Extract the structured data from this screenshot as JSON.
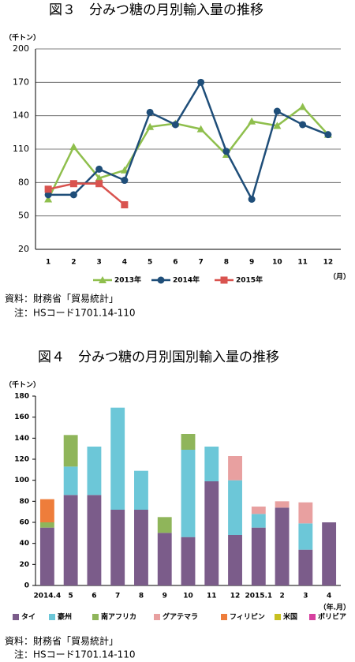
{
  "chart_data": [
    {
      "type": "line",
      "title": "図３　分みつ糖の月別輸入量の推移",
      "y_unit": "（千トン）",
      "x_unit": "（月）",
      "categories": [
        "1",
        "2",
        "3",
        "4",
        "5",
        "6",
        "7",
        "8",
        "9",
        "10",
        "11",
        "12"
      ],
      "ylim": [
        20,
        200
      ],
      "yticks": [
        20,
        50,
        80,
        110,
        140,
        170,
        200
      ],
      "grid": true,
      "series": [
        {
          "name": "2013年",
          "color": "#8fbf4d",
          "marker": "triangle",
          "values": [
            65,
            112,
            84,
            91,
            130,
            133,
            128,
            105,
            135,
            131,
            148,
            123
          ]
        },
        {
          "name": "2014年",
          "color": "#1f4e79",
          "marker": "circle",
          "values": [
            69,
            69,
            92,
            82,
            143,
            132,
            170,
            108,
            65,
            144,
            132,
            123
          ]
        },
        {
          "name": "2015年",
          "color": "#d9534f",
          "marker": "square",
          "values": [
            74,
            79,
            79,
            60,
            null,
            null,
            null,
            null,
            null,
            null,
            null,
            null
          ]
        }
      ],
      "source": "資料：財務省「貿易統計」",
      "note": "注：HSコード1701.14-110"
    },
    {
      "type": "stacked-bar",
      "title": "図４　分みつ糖の月別国別輸入量の推移",
      "y_unit": "（千トン）",
      "x_unit": "（年.月）",
      "categories": [
        "2014.4",
        "5",
        "6",
        "7",
        "8",
        "9",
        "10",
        "11",
        "12",
        "2015.1",
        "2",
        "3",
        "4"
      ],
      "ylim": [
        0,
        180
      ],
      "yticks": [
        0,
        20,
        40,
        60,
        80,
        100,
        120,
        140,
        160,
        180
      ],
      "grid": false,
      "series": [
        {
          "name": "タイ",
          "color": "#7b5c8a",
          "values": [
            55,
            86,
            86,
            72,
            72,
            50,
            46,
            99,
            48,
            55,
            74,
            34,
            60
          ]
        },
        {
          "name": "豪州",
          "color": "#6cc7d8",
          "values": [
            0,
            27,
            46,
            97,
            37,
            0,
            83,
            33,
            52,
            13,
            0,
            25,
            0
          ]
        },
        {
          "name": "南アフリカ",
          "color": "#8fb55a",
          "values": [
            5,
            30,
            0,
            0,
            0,
            15,
            15,
            0,
            0,
            0,
            0,
            0,
            0
          ]
        },
        {
          "name": "グアテマラ",
          "color": "#e8a0a0",
          "values": [
            0,
            0,
            0,
            0,
            0,
            0,
            0,
            0,
            23,
            7,
            6,
            20,
            0
          ]
        },
        {
          "name": "フィリピン",
          "color": "#ee7d3b",
          "values": [
            22,
            0,
            0,
            0,
            0,
            0,
            0,
            0,
            0,
            0,
            0,
            0,
            0
          ]
        },
        {
          "name": "米国",
          "color": "#c8c020",
          "values": [
            0,
            0,
            0,
            0,
            0,
            0,
            0,
            0,
            0,
            0,
            0,
            0,
            0
          ]
        },
        {
          "name": "ボリビア",
          "color": "#d6409f",
          "values": [
            0,
            0,
            0,
            0,
            0,
            0,
            0,
            0,
            0,
            0,
            0,
            0,
            0
          ]
        }
      ],
      "source": "資料：財務省「貿易統計」",
      "note": "注：HSコード1701.14-110"
    }
  ]
}
